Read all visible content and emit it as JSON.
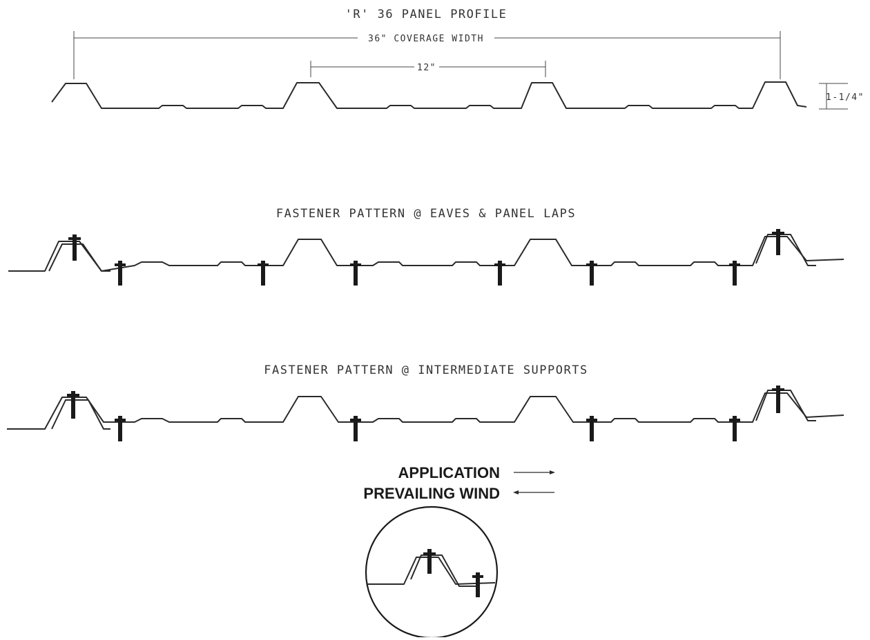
{
  "titles": {
    "profile": "'R' 36 PANEL PROFILE",
    "eaves": "FASTENER PATTERN @ EAVES & PANEL LAPS",
    "intermediate": "FASTENER PATTERN @ INTERMEDIATE SUPPORTS"
  },
  "dimensions": {
    "coverage": "36\" COVERAGE WIDTH",
    "rib_spacing": "12\"",
    "rib_height": "1-1/4\""
  },
  "legend": {
    "application": "APPLICATION",
    "prevailing_wind": "PREVAILING WIND"
  },
  "colors": {
    "line": "#2a2a2a",
    "text": "#333333"
  }
}
